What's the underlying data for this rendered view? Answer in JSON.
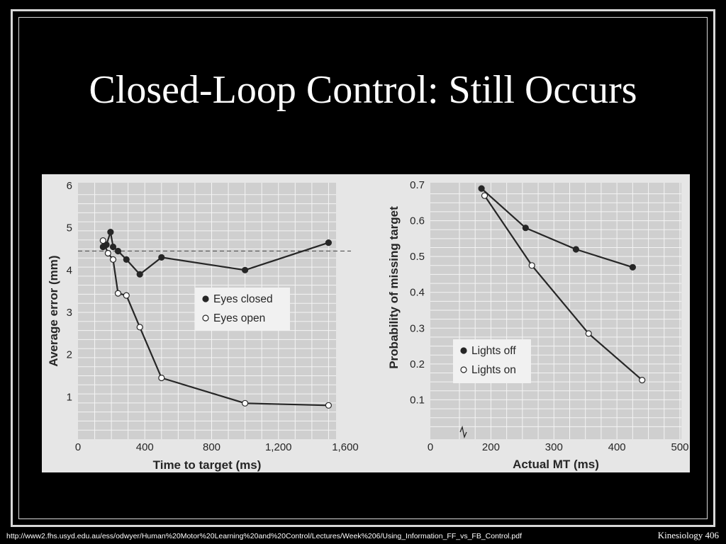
{
  "slide": {
    "title": "Closed-Loop Control: Still Occurs",
    "footer_url": "http://www2.fhs.usyd.edu.au/ess/odwyer/Human%20Motor%20Learning%20and%20Control/Lectures/Week%206/Using_Information_FF_vs_FB_Control.pdf",
    "footer_page": "Kinesiology 406"
  },
  "colors": {
    "background": "#000000",
    "figure_bg": "#e6e6e6",
    "plot_bg": "#cfcfcf",
    "grid": "#f4f4f4",
    "ink": "#262626"
  },
  "chart_data": [
    {
      "type": "line",
      "xlabel": "Time to target (ms)",
      "ylabel": "Average error (mm)",
      "xlim": [
        0,
        1600
      ],
      "ylim": [
        0,
        6
      ],
      "xticks": [
        0,
        400,
        800,
        1200,
        1600
      ],
      "xtick_labels": [
        "0",
        "400",
        "800",
        "1,200",
        "1,600"
      ],
      "yticks": [
        1,
        2,
        3,
        4,
        5,
        6
      ],
      "ytick_labels": [
        "1",
        "2",
        "3",
        "4",
        "5",
        "6"
      ],
      "grid": true,
      "legend_position": "center-right",
      "reference_line": {
        "y": 4.45,
        "style": "dashed"
      },
      "series": [
        {
          "name": "Eyes closed",
          "marker": "filled",
          "x": [
            150,
            170,
            195,
            210,
            240,
            290,
            370,
            500,
            1000,
            1500
          ],
          "y": [
            4.55,
            4.6,
            4.9,
            4.55,
            4.45,
            4.25,
            3.9,
            4.3,
            4.0,
            4.65
          ]
        },
        {
          "name": "Eyes open",
          "marker": "open",
          "x": [
            150,
            180,
            210,
            240,
            290,
            370,
            500,
            1000,
            1500
          ],
          "y": [
            4.7,
            4.4,
            4.25,
            3.45,
            3.4,
            2.65,
            1.45,
            0.85,
            0.8
          ]
        }
      ]
    },
    {
      "type": "line",
      "xlabel": "Actual MT (ms)",
      "ylabel": "Probability of missing target",
      "xlim": [
        0,
        500
      ],
      "ylim": [
        0,
        0.7
      ],
      "xticks": [
        0,
        200,
        300,
        400,
        500
      ],
      "xtick_labels": [
        "0",
        "200",
        "300",
        "400",
        "500"
      ],
      "yticks": [
        0.1,
        0.2,
        0.3,
        0.4,
        0.5,
        0.6,
        0.7
      ],
      "ytick_labels": [
        "0.1",
        "0.2",
        "0.3",
        "0.4",
        "0.5",
        "0.6",
        "0.7"
      ],
      "axis_break": true,
      "grid": true,
      "legend_position": "bottom-left",
      "series": [
        {
          "name": "Lights off",
          "marker": "filled",
          "x": [
            185,
            255,
            335,
            425
          ],
          "y": [
            0.69,
            0.58,
            0.52,
            0.47
          ]
        },
        {
          "name": "Lights on",
          "marker": "open",
          "x": [
            190,
            265,
            355,
            440
          ],
          "y": [
            0.67,
            0.475,
            0.285,
            0.155
          ]
        }
      ]
    }
  ]
}
